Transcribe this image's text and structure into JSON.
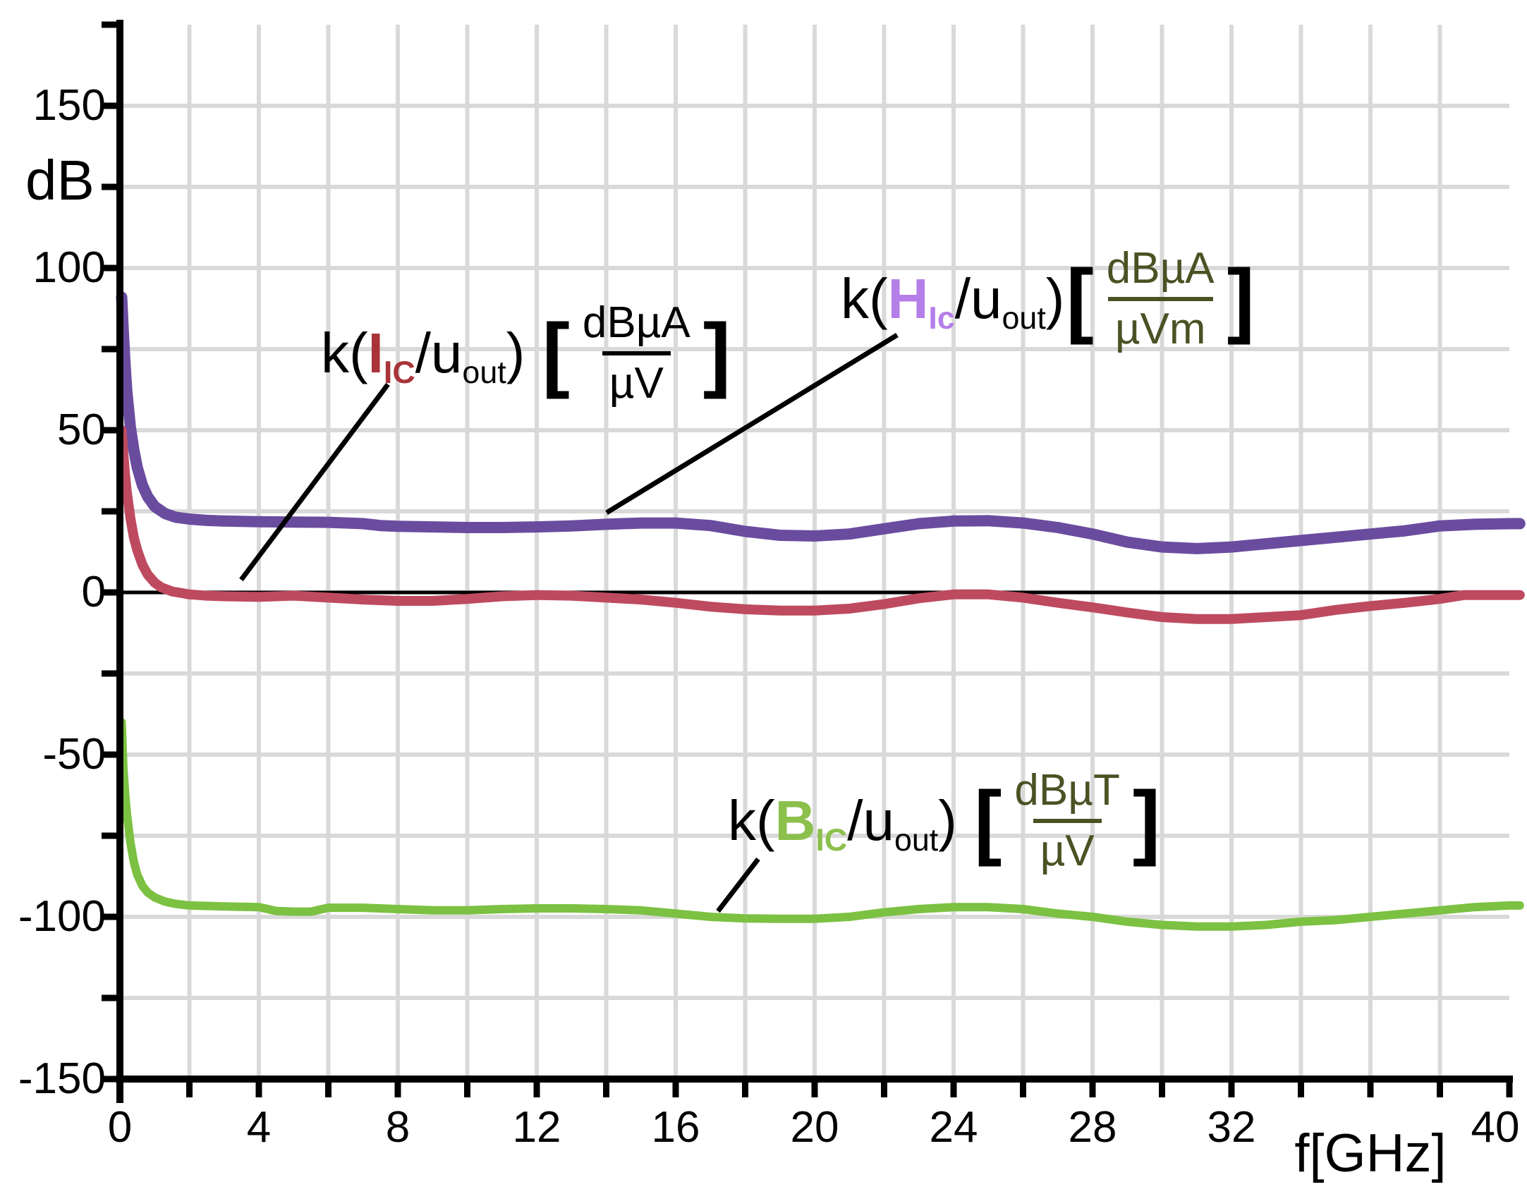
{
  "chart_data": {
    "type": "line",
    "title": "",
    "xlabel": "f[GHz]",
    "ylabel": "dB",
    "xlim": [
      0,
      40
    ],
    "ylim": [
      -150,
      175
    ],
    "grid": true,
    "x_tick_step_ghz": 2,
    "y_tick_step_db": 25,
    "x_tick_labels": [
      {
        "f": 0,
        "label": "0"
      },
      {
        "f": 4,
        "label": "4"
      },
      {
        "f": 8,
        "label": "8"
      },
      {
        "f": 12,
        "label": "12"
      },
      {
        "f": 16,
        "label": "16"
      },
      {
        "f": 20,
        "label": "20"
      },
      {
        "f": 24,
        "label": "24"
      },
      {
        "f": 28,
        "label": "28"
      },
      {
        "f": 32,
        "label": "32"
      },
      {
        "f": 40,
        "label": "40"
      }
    ],
    "y_tick_labels": [
      {
        "dB": 150,
        "label": "150"
      },
      {
        "dB": 100,
        "label": "100"
      },
      {
        "dB": 50,
        "label": "50"
      },
      {
        "dB": 0,
        "label": "0"
      },
      {
        "dB": -50,
        "label": "-50"
      },
      {
        "dB": -100,
        "label": "-100"
      },
      {
        "dB": -150,
        "label": "-150"
      }
    ],
    "reference_lines": [
      {
        "dB": 0,
        "color": "#000000"
      }
    ],
    "colors": {
      "grid": "#D9D9D9",
      "axis": "#000000",
      "h_curve": "#6A4C9F",
      "i_curve": "#BE4A60",
      "b_curve": "#7CC142"
    },
    "series": [
      {
        "id": "H",
        "name": "k(H_Ic/u_out) [dBµA/µVm]",
        "color": "#6A4C9F",
        "stroke_width": 16,
        "points": [
          [
            0.05,
            91
          ],
          [
            0.1,
            80
          ],
          [
            0.15,
            70
          ],
          [
            0.2,
            62
          ],
          [
            0.3,
            51
          ],
          [
            0.4,
            44
          ],
          [
            0.5,
            38.5
          ],
          [
            0.65,
            33
          ],
          [
            0.8,
            29.5
          ],
          [
            1,
            26.5
          ],
          [
            1.3,
            24.3
          ],
          [
            1.6,
            23.2
          ],
          [
            2,
            22.6
          ],
          [
            2.5,
            22.2
          ],
          [
            3,
            22
          ],
          [
            4,
            21.8
          ],
          [
            5,
            21.7
          ],
          [
            6,
            21.6
          ],
          [
            7,
            21.2
          ],
          [
            7.5,
            20.6
          ],
          [
            8,
            20.4
          ],
          [
            9,
            20.2
          ],
          [
            10,
            20
          ],
          [
            11,
            20
          ],
          [
            12,
            20.2
          ],
          [
            13,
            20.5
          ],
          [
            14,
            21
          ],
          [
            15,
            21.4
          ],
          [
            16,
            21.4
          ],
          [
            17,
            20.6
          ],
          [
            18,
            18.8
          ],
          [
            19,
            17.6
          ],
          [
            20,
            17.4
          ],
          [
            21,
            18
          ],
          [
            22,
            19.6
          ],
          [
            23,
            21.2
          ],
          [
            24,
            22
          ],
          [
            25,
            22.1
          ],
          [
            26,
            21.4
          ],
          [
            27,
            20
          ],
          [
            28,
            18
          ],
          [
            29,
            15.5
          ],
          [
            30,
            14
          ],
          [
            31,
            13.5
          ],
          [
            32,
            14
          ],
          [
            33,
            15
          ],
          [
            34,
            16
          ],
          [
            35,
            17
          ],
          [
            36,
            18
          ],
          [
            37,
            19
          ],
          [
            38,
            20.5
          ],
          [
            39,
            21
          ],
          [
            40,
            21.2
          ],
          [
            40.3,
            21.2
          ]
        ]
      },
      {
        "id": "I",
        "name": "k(I_IC/u_out) [dBµA/µV]",
        "color": "#BE4A60",
        "stroke_width": 14,
        "points": [
          [
            0.05,
            50
          ],
          [
            0.1,
            43
          ],
          [
            0.15,
            36
          ],
          [
            0.2,
            31
          ],
          [
            0.3,
            23
          ],
          [
            0.4,
            17
          ],
          [
            0.5,
            13
          ],
          [
            0.65,
            8.5
          ],
          [
            0.8,
            5.5
          ],
          [
            1,
            3
          ],
          [
            1.2,
            1.5
          ],
          [
            1.5,
            0.3
          ],
          [
            2,
            -0.6
          ],
          [
            2.5,
            -1
          ],
          [
            3,
            -1.2
          ],
          [
            4,
            -1.4
          ],
          [
            5,
            -1
          ],
          [
            6,
            -1.6
          ],
          [
            7,
            -2.2
          ],
          [
            8,
            -2.6
          ],
          [
            9,
            -2.6
          ],
          [
            10,
            -2
          ],
          [
            11,
            -1.2
          ],
          [
            12,
            -0.8
          ],
          [
            13,
            -1
          ],
          [
            14,
            -1.6
          ],
          [
            15,
            -2.2
          ],
          [
            16,
            -3.2
          ],
          [
            17,
            -4.4
          ],
          [
            18,
            -5.2
          ],
          [
            19,
            -5.6
          ],
          [
            20,
            -5.6
          ],
          [
            21,
            -5
          ],
          [
            22,
            -3.6
          ],
          [
            23,
            -1.8
          ],
          [
            24,
            -0.6
          ],
          [
            25,
            -0.6
          ],
          [
            26,
            -1.6
          ],
          [
            27,
            -3.2
          ],
          [
            28,
            -4.6
          ],
          [
            29,
            -6.2
          ],
          [
            30,
            -7.6
          ],
          [
            31,
            -8.2
          ],
          [
            32,
            -8.2
          ],
          [
            33,
            -7.6
          ],
          [
            34,
            -7
          ],
          [
            35,
            -5.4
          ],
          [
            36,
            -4.2
          ],
          [
            37,
            -3.2
          ],
          [
            38,
            -2
          ],
          [
            38.7,
            -0.8
          ],
          [
            40,
            -0.8
          ],
          [
            40.3,
            -0.8
          ]
        ]
      },
      {
        "id": "B",
        "name": "k(B_IC/u_out) [dBµT/µV]",
        "color": "#7CC142",
        "stroke_width": 12,
        "points": [
          [
            0.05,
            -40
          ],
          [
            0.1,
            -54
          ],
          [
            0.15,
            -62
          ],
          [
            0.2,
            -68
          ],
          [
            0.3,
            -77
          ],
          [
            0.4,
            -83
          ],
          [
            0.5,
            -87
          ],
          [
            0.65,
            -90.5
          ],
          [
            0.8,
            -92.5
          ],
          [
            1,
            -94
          ],
          [
            1.3,
            -95.3
          ],
          [
            1.6,
            -96
          ],
          [
            2,
            -96.5
          ],
          [
            3,
            -96.8
          ],
          [
            4,
            -97
          ],
          [
            4.5,
            -98.2
          ],
          [
            5,
            -98.4
          ],
          [
            5.5,
            -98.4
          ],
          [
            6,
            -97.2
          ],
          [
            7,
            -97.2
          ],
          [
            8,
            -97.6
          ],
          [
            9,
            -98
          ],
          [
            10,
            -98
          ],
          [
            11,
            -97.6
          ],
          [
            12,
            -97.4
          ],
          [
            13,
            -97.4
          ],
          [
            14,
            -97.6
          ],
          [
            15,
            -98
          ],
          [
            16,
            -99
          ],
          [
            17,
            -100
          ],
          [
            18,
            -100.5
          ],
          [
            19,
            -100.6
          ],
          [
            20,
            -100.6
          ],
          [
            21,
            -100
          ],
          [
            22,
            -98.6
          ],
          [
            23,
            -97.6
          ],
          [
            24,
            -97
          ],
          [
            25,
            -97
          ],
          [
            26,
            -97.6
          ],
          [
            27,
            -99
          ],
          [
            28,
            -100
          ],
          [
            29,
            -101.5
          ],
          [
            30,
            -102.5
          ],
          [
            31,
            -103
          ],
          [
            32,
            -103
          ],
          [
            33,
            -102.5
          ],
          [
            34,
            -101.5
          ],
          [
            35,
            -101
          ],
          [
            36,
            -100
          ],
          [
            37,
            -99
          ],
          [
            38,
            -98
          ],
          [
            39,
            -97
          ],
          [
            40,
            -96.5
          ],
          [
            40.3,
            -96.5
          ]
        ]
      }
    ],
    "callouts": [
      {
        "target": "I",
        "from": [
          550,
          545
        ],
        "to": [
          342,
          822
        ]
      },
      {
        "target": "H",
        "from": [
          1272,
          475
        ],
        "to": [
          860,
          727
        ]
      },
      {
        "target": "B",
        "from": [
          1075,
          1218
        ],
        "to": [
          1018,
          1292
        ]
      }
    ]
  },
  "axis": {
    "y_unit": "dB",
    "x_unit": "f[GHz]"
  },
  "formulas": {
    "i": {
      "k": "k(",
      "sym": "I",
      "sub": "IC",
      "slash": "/u",
      "out": "out",
      "close": ") ",
      "lbracket": "[",
      "num": "dBµA",
      "den": "µV",
      "rbracket": "]",
      "sym_color": "#A8343A",
      "frac_color": "#000000"
    },
    "h": {
      "k": "k(",
      "sym": "H",
      "sub": "Ic",
      "slash": "/u",
      "out": "out",
      "close": ")",
      "lbracket": "[",
      "num": "dBµA",
      "den": "µVm",
      "rbracket": "]",
      "sym_color": "#B57EE8",
      "frac_color": "#4A5224"
    },
    "b": {
      "k": "k(",
      "sym": "B",
      "sub": "IC",
      "slash": "/u",
      "out": "out",
      "close": ") ",
      "lbracket": "[",
      "num": "dBµT",
      "den": "µV",
      "rbracket": "]",
      "sym_color": "#8CC04C",
      "frac_color": "#4A5224"
    }
  }
}
